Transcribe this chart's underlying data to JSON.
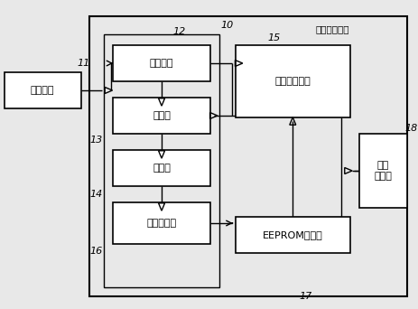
{
  "fig_width": 4.64,
  "fig_height": 3.42,
  "dpi": 100,
  "bg_color": "#e8e8e8",
  "box_fc": "#ffffff",
  "box_ec": "#000000",
  "lw_thick": 1.5,
  "lw_thin": 1.0,
  "antenna_label": "天线单元",
  "rf_label": "射频接口",
  "mod_label": "调制器",
  "demod_label": "解调器",
  "vreg_label": "电压调节器",
  "logic_label": "逻辑控制单元",
  "eeprom_label": "EEPROM存储器",
  "remote_label": "遥控\n检测器",
  "chip_label": "信号芯片单元",
  "n11": "11",
  "n12": "12",
  "n13": "13",
  "n14": "14",
  "n15": "15",
  "n16": "16",
  "n17": "17",
  "n18": "18",
  "n10": "10"
}
